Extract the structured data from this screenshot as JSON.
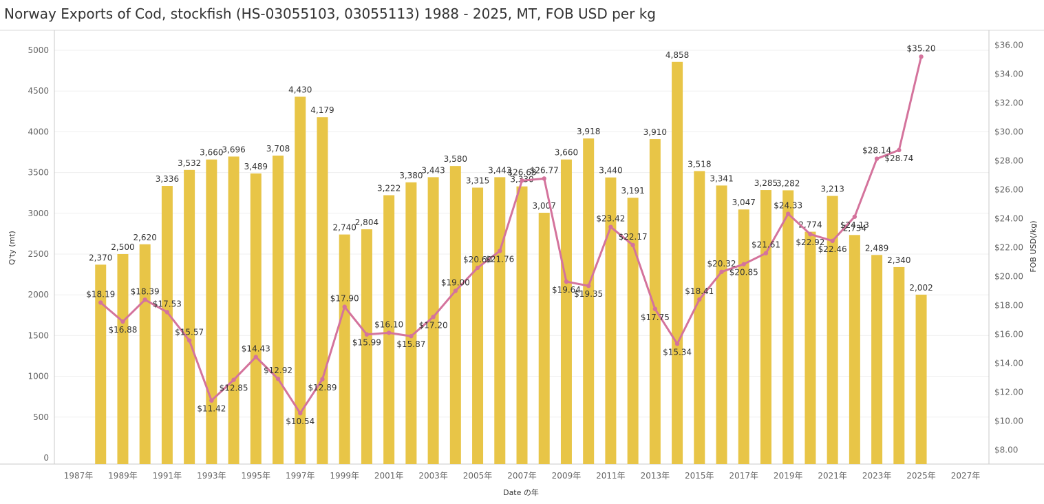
{
  "title": "Norway Exports of Cod, stockfish (HS-03055103, 03055113) 1988 - 2025, MT, FOB USD per kg",
  "chart_data": {
    "type": "bar+line",
    "title": "Norway Exports of Cod, stockfish (HS-03055103, 03055113) 1988 - 2025, MT, FOB USD per kg",
    "xlabel": "Date の年",
    "ylabel_left": "Q'ty (mt)",
    "ylabel_right": "FOB USD(/kg)",
    "x_range": [
      1987,
      2027
    ],
    "x_ticks": [
      "1987年",
      "1989年",
      "1991年",
      "1993年",
      "1995年",
      "1997年",
      "1999年",
      "2001年",
      "2003年",
      "2005年",
      "2007年",
      "2009年",
      "2011年",
      "2013年",
      "2015年",
      "2017年",
      "2019年",
      "2021年",
      "2023年",
      "2025年",
      "2027年"
    ],
    "y_left_range": [
      0,
      5000
    ],
    "y_left_ticks": [
      "5000",
      "4500",
      "4000",
      "3500",
      "3000",
      "2500",
      "2000",
      "1500",
      "1000",
      "500",
      "0"
    ],
    "y_right_range": [
      7,
      36
    ],
    "y_right_ticks": [
      "$36.00",
      "$34.00",
      "$32.00",
      "$30.00",
      "$28.00",
      "$26.00",
      "$24.00",
      "$22.00",
      "$20.00",
      "$18.00",
      "$16.00",
      "$14.00",
      "$12.00",
      "$10.00",
      "$8.00"
    ],
    "years": [
      1988,
      1989,
      1990,
      1991,
      1992,
      1993,
      1994,
      1995,
      1996,
      1997,
      1998,
      1999,
      2000,
      2001,
      2002,
      2003,
      2004,
      2005,
      2006,
      2007,
      2008,
      2009,
      2010,
      2011,
      2012,
      2013,
      2014,
      2015,
      2016,
      2017,
      2018,
      2019,
      2020,
      2021,
      2022,
      2023,
      2024,
      2025
    ],
    "series": [
      {
        "name": "Q'ty (mt)",
        "type": "bar",
        "color": "#E8C547",
        "values": [
          2370,
          2500,
          2620,
          3336,
          3532,
          3660,
          3696,
          3489,
          3708,
          4430,
          4179,
          2740,
          2804,
          3222,
          3380,
          3443,
          3580,
          3315,
          3443,
          3330,
          3007,
          3660,
          3918,
          3440,
          3191,
          3910,
          4858,
          3518,
          3341,
          3047,
          3285,
          3282,
          2774,
          3213,
          2734,
          2489,
          2340,
          2002
        ],
        "labels": [
          "2,370",
          "2,500",
          "2,620",
          "3,336",
          "3,532",
          "3,660",
          "3,696",
          "3,489",
          "3,708",
          "4,430",
          "4,179",
          "2,740",
          "2,804",
          "3,222",
          "3,380",
          "3,443",
          "3,580",
          "3,315",
          "3,443",
          "3,330",
          "3,007",
          "3,660",
          "3,918",
          "3,440",
          "3,191",
          "3,910",
          "4,858",
          "3,518",
          "3,341",
          "3,047",
          "3,285",
          "3,282",
          "2,774",
          "3,213",
          "2,734",
          "2,489",
          "2,340",
          "2,002"
        ]
      },
      {
        "name": "FOB USD(/kg)",
        "type": "line",
        "color": "#D4739C",
        "values": [
          18.19,
          16.88,
          18.39,
          17.53,
          15.57,
          11.42,
          12.85,
          14.43,
          12.92,
          10.54,
          12.89,
          17.9,
          15.99,
          16.1,
          15.87,
          17.2,
          19.0,
          20.6,
          21.76,
          26.63,
          26.77,
          19.64,
          19.35,
          23.42,
          22.17,
          17.75,
          15.34,
          18.41,
          20.32,
          20.85,
          21.61,
          24.33,
          22.92,
          22.46,
          24.13,
          28.14,
          28.74,
          35.2
        ],
        "labels": [
          "$18.19",
          "$16.88",
          "$18.39",
          "$17.53",
          "$15.57",
          "$11.42",
          "$12.85",
          "$14.43",
          "$12.92",
          "$10.54",
          "$12.89",
          "$17.90",
          "$15.99",
          "$16.10",
          "$15.87",
          "$17.20",
          "$19.00",
          "$20.60",
          "$21.76",
          "$26.63",
          "$26.77",
          "$19.64",
          "$19.35",
          "$23.42",
          "$22.17",
          "$17.75",
          "$15.34",
          "$18.41",
          "$20.32",
          "$20.85",
          "$21.61",
          "$24.33",
          "$22.92",
          "$22.46",
          "$24.13",
          "$28.14",
          "$28.74",
          "$35.20"
        ],
        "label_positions": [
          "above",
          "below",
          "above",
          "above",
          "above",
          "below",
          "below",
          "above",
          "above",
          "below",
          "below",
          "above",
          "below",
          "above",
          "below",
          "below",
          "above",
          "above",
          "below",
          "above",
          "above",
          "below",
          "below",
          "above",
          "above",
          "below",
          "below",
          "above",
          "above",
          "below",
          "above",
          "above",
          "below",
          "below",
          "below",
          "above",
          "below",
          "above"
        ]
      }
    ],
    "grid": true,
    "legend": "none"
  }
}
